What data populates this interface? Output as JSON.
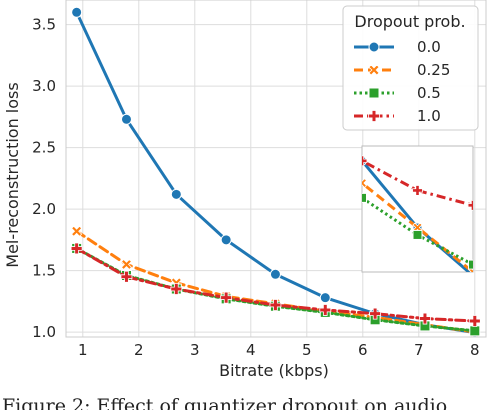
{
  "chart_data": {
    "type": "line",
    "xlabel": "Bitrate (kbps)",
    "ylabel": "Mel-reconstruction loss",
    "xlim": [
      0.7,
      8.2
    ],
    "ylim": [
      0.96,
      3.7
    ],
    "xticks": [
      1,
      2,
      3,
      4,
      5,
      6,
      7,
      8
    ],
    "yticks": [
      1.0,
      1.5,
      2.0,
      2.5,
      3.0,
      3.5
    ],
    "ytick_labels": [
      "1.0",
      "1.5",
      "2.0",
      "2.5",
      "3.0",
      "3.5"
    ],
    "grid": true,
    "legend": {
      "title": "Dropout prob.",
      "placement": "top-right"
    },
    "series": [
      {
        "name": "0.0",
        "color": "#1f77b4",
        "marker": "circle",
        "dash": "solid",
        "x": [
          0.89,
          1.78,
          2.67,
          3.56,
          4.44,
          5.33,
          6.22,
          7.11,
          8.0
        ],
        "y": [
          3.6,
          2.73,
          2.12,
          1.75,
          1.47,
          1.28,
          1.15,
          1.06,
          0.995
        ]
      },
      {
        "name": "0.25",
        "color": "#ff7f0e",
        "marker": "x",
        "dash": "dashed",
        "x": [
          0.89,
          1.78,
          2.67,
          3.56,
          4.44,
          5.33,
          6.22,
          7.11,
          8.0
        ],
        "y": [
          1.82,
          1.55,
          1.4,
          1.29,
          1.23,
          1.17,
          1.12,
          1.06,
          1.0
        ]
      },
      {
        "name": "0.5",
        "color": "#2ca02c",
        "marker": "square",
        "dash": "dotted",
        "x": [
          0.89,
          1.78,
          2.67,
          3.56,
          4.44,
          5.33,
          6.22,
          7.11,
          8.0
        ],
        "y": [
          1.68,
          1.46,
          1.35,
          1.27,
          1.21,
          1.16,
          1.1,
          1.05,
          1.01
        ]
      },
      {
        "name": "1.0",
        "color": "#d62728",
        "marker": "plus",
        "dash": "dashdot",
        "x": [
          0.89,
          1.78,
          2.67,
          3.56,
          4.44,
          5.33,
          6.22,
          7.11,
          8.0
        ],
        "y": [
          1.68,
          1.45,
          1.35,
          1.28,
          1.22,
          1.18,
          1.15,
          1.11,
          1.09
        ]
      }
    ],
    "inset": {
      "xlim": [
        6.22,
        8.0
      ],
      "ylim": [
        1.0,
        1.17
      ]
    }
  },
  "caption": "Figure 2: Effect of quantizer dropout on audio"
}
